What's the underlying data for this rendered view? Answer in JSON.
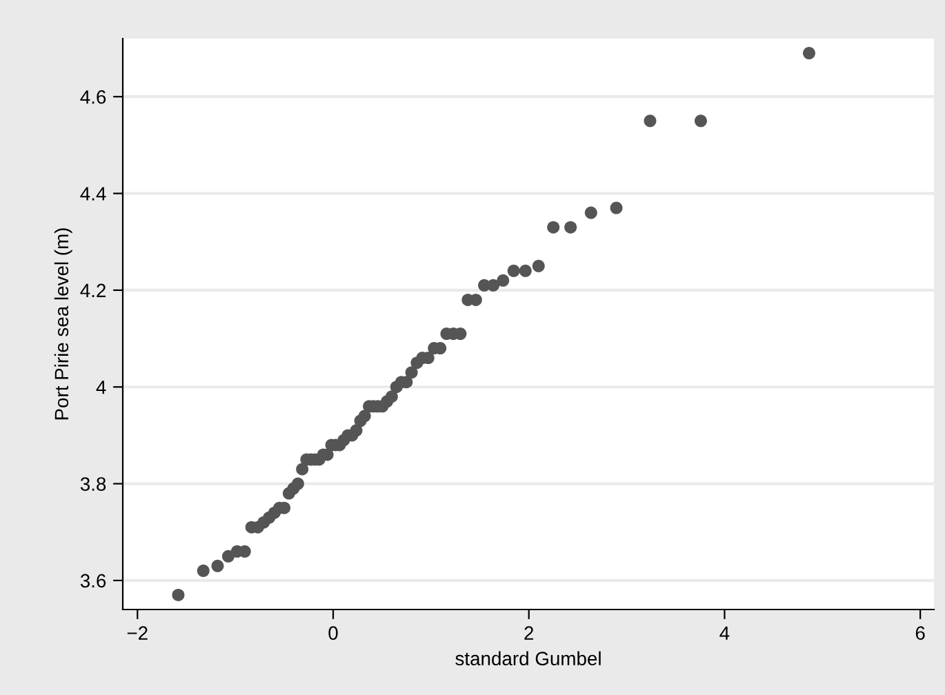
{
  "chart_data": {
    "type": "scatter",
    "xlabel": "standard Gumbel",
    "ylabel": "Port Pirie sea level (m)",
    "x": [
      -1.583,
      -1.327,
      -1.181,
      -1.072,
      -0.982,
      -0.904,
      -0.834,
      -0.77,
      -0.71,
      -0.654,
      -0.6,
      -0.549,
      -0.5,
      -0.452,
      -0.406,
      -0.36,
      -0.316,
      -0.272,
      -0.228,
      -0.186,
      -0.143,
      -0.101,
      -0.059,
      -0.017,
      0.025,
      0.066,
      0.108,
      0.151,
      0.193,
      0.236,
      0.279,
      0.322,
      0.367,
      0.411,
      0.457,
      0.503,
      0.55,
      0.598,
      0.647,
      0.697,
      0.749,
      0.801,
      0.856,
      0.912,
      0.971,
      1.031,
      1.094,
      1.159,
      1.228,
      1.3,
      1.377,
      1.458,
      1.544,
      1.636,
      1.736,
      1.845,
      1.965,
      2.099,
      2.25,
      2.426,
      2.635,
      2.894,
      3.239,
      3.757,
      4.864
    ],
    "series": [
      {
        "color": "#555555",
        "values": [
          3.57,
          3.62,
          3.63,
          3.65,
          3.66,
          3.66,
          3.71,
          3.71,
          3.72,
          3.73,
          3.74,
          3.75,
          3.75,
          3.78,
          3.79,
          3.8,
          3.83,
          3.85,
          3.85,
          3.85,
          3.85,
          3.86,
          3.86,
          3.88,
          3.88,
          3.88,
          3.89,
          3.9,
          3.9,
          3.91,
          3.93,
          3.94,
          3.96,
          3.96,
          3.96,
          3.96,
          3.97,
          3.98,
          4.0,
          4.01,
          4.01,
          4.03,
          4.05,
          4.06,
          4.06,
          4.08,
          4.08,
          4.11,
          4.11,
          4.11,
          4.18,
          4.18,
          4.21,
          4.21,
          4.22,
          4.24,
          4.24,
          4.25,
          4.33,
          4.33,
          4.36,
          4.37,
          4.55,
          4.55,
          4.69
        ]
      }
    ],
    "xlim": [
      -2.15,
      6.14
    ],
    "ylim": [
      3.54,
      4.72
    ],
    "xticks": [
      {
        "value": -2,
        "label": "−2"
      },
      0,
      2,
      4,
      6
    ],
    "yticks": [
      3.6,
      3.8,
      4,
      4.2,
      4.4,
      4.6
    ],
    "grid": "y",
    "marker": "circle"
  }
}
